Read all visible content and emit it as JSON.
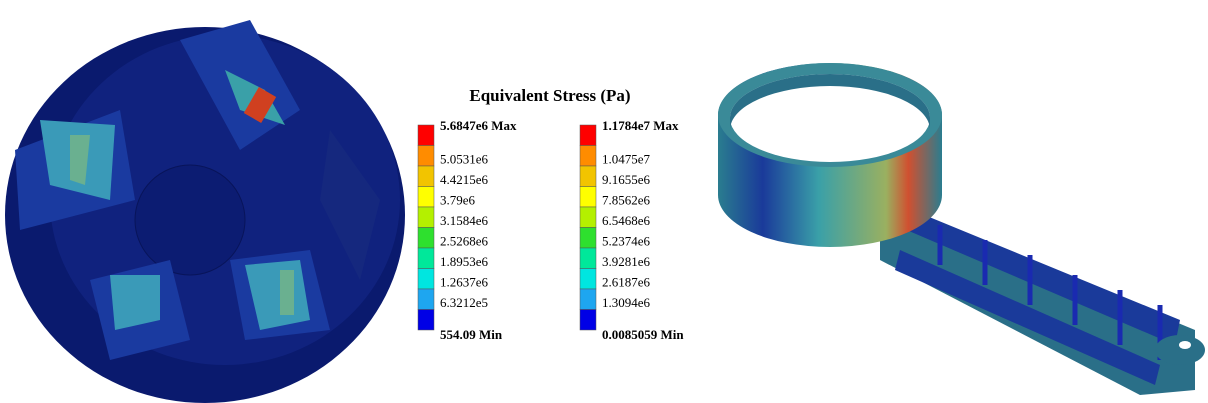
{
  "title": "Equivalent Stress (Pa)",
  "colors": [
    "#ff0000",
    "#ff8c00",
    "#f2c400",
    "#ffff00",
    "#b4f000",
    "#2ee02e",
    "#00e89a",
    "#00e6e0",
    "#1ea6f0",
    "#0000e6"
  ],
  "legends": [
    {
      "labels": [
        "5.6847e6 Max",
        "5.0531e6",
        "4.4215e6",
        "3.79e6",
        "3.1584e6",
        "2.5268e6",
        "1.8953e6",
        "1.2637e6",
        "6.3212e5",
        "554.09 Min"
      ]
    },
    {
      "labels": [
        "1.1784e7 Max",
        "1.0475e7",
        "9.1655e6",
        "7.8562e6",
        "6.5468e6",
        "5.2374e6",
        "3.9281e6",
        "2.6187e6",
        "1.3094e6",
        "0.0085059 Min"
      ]
    }
  ]
}
